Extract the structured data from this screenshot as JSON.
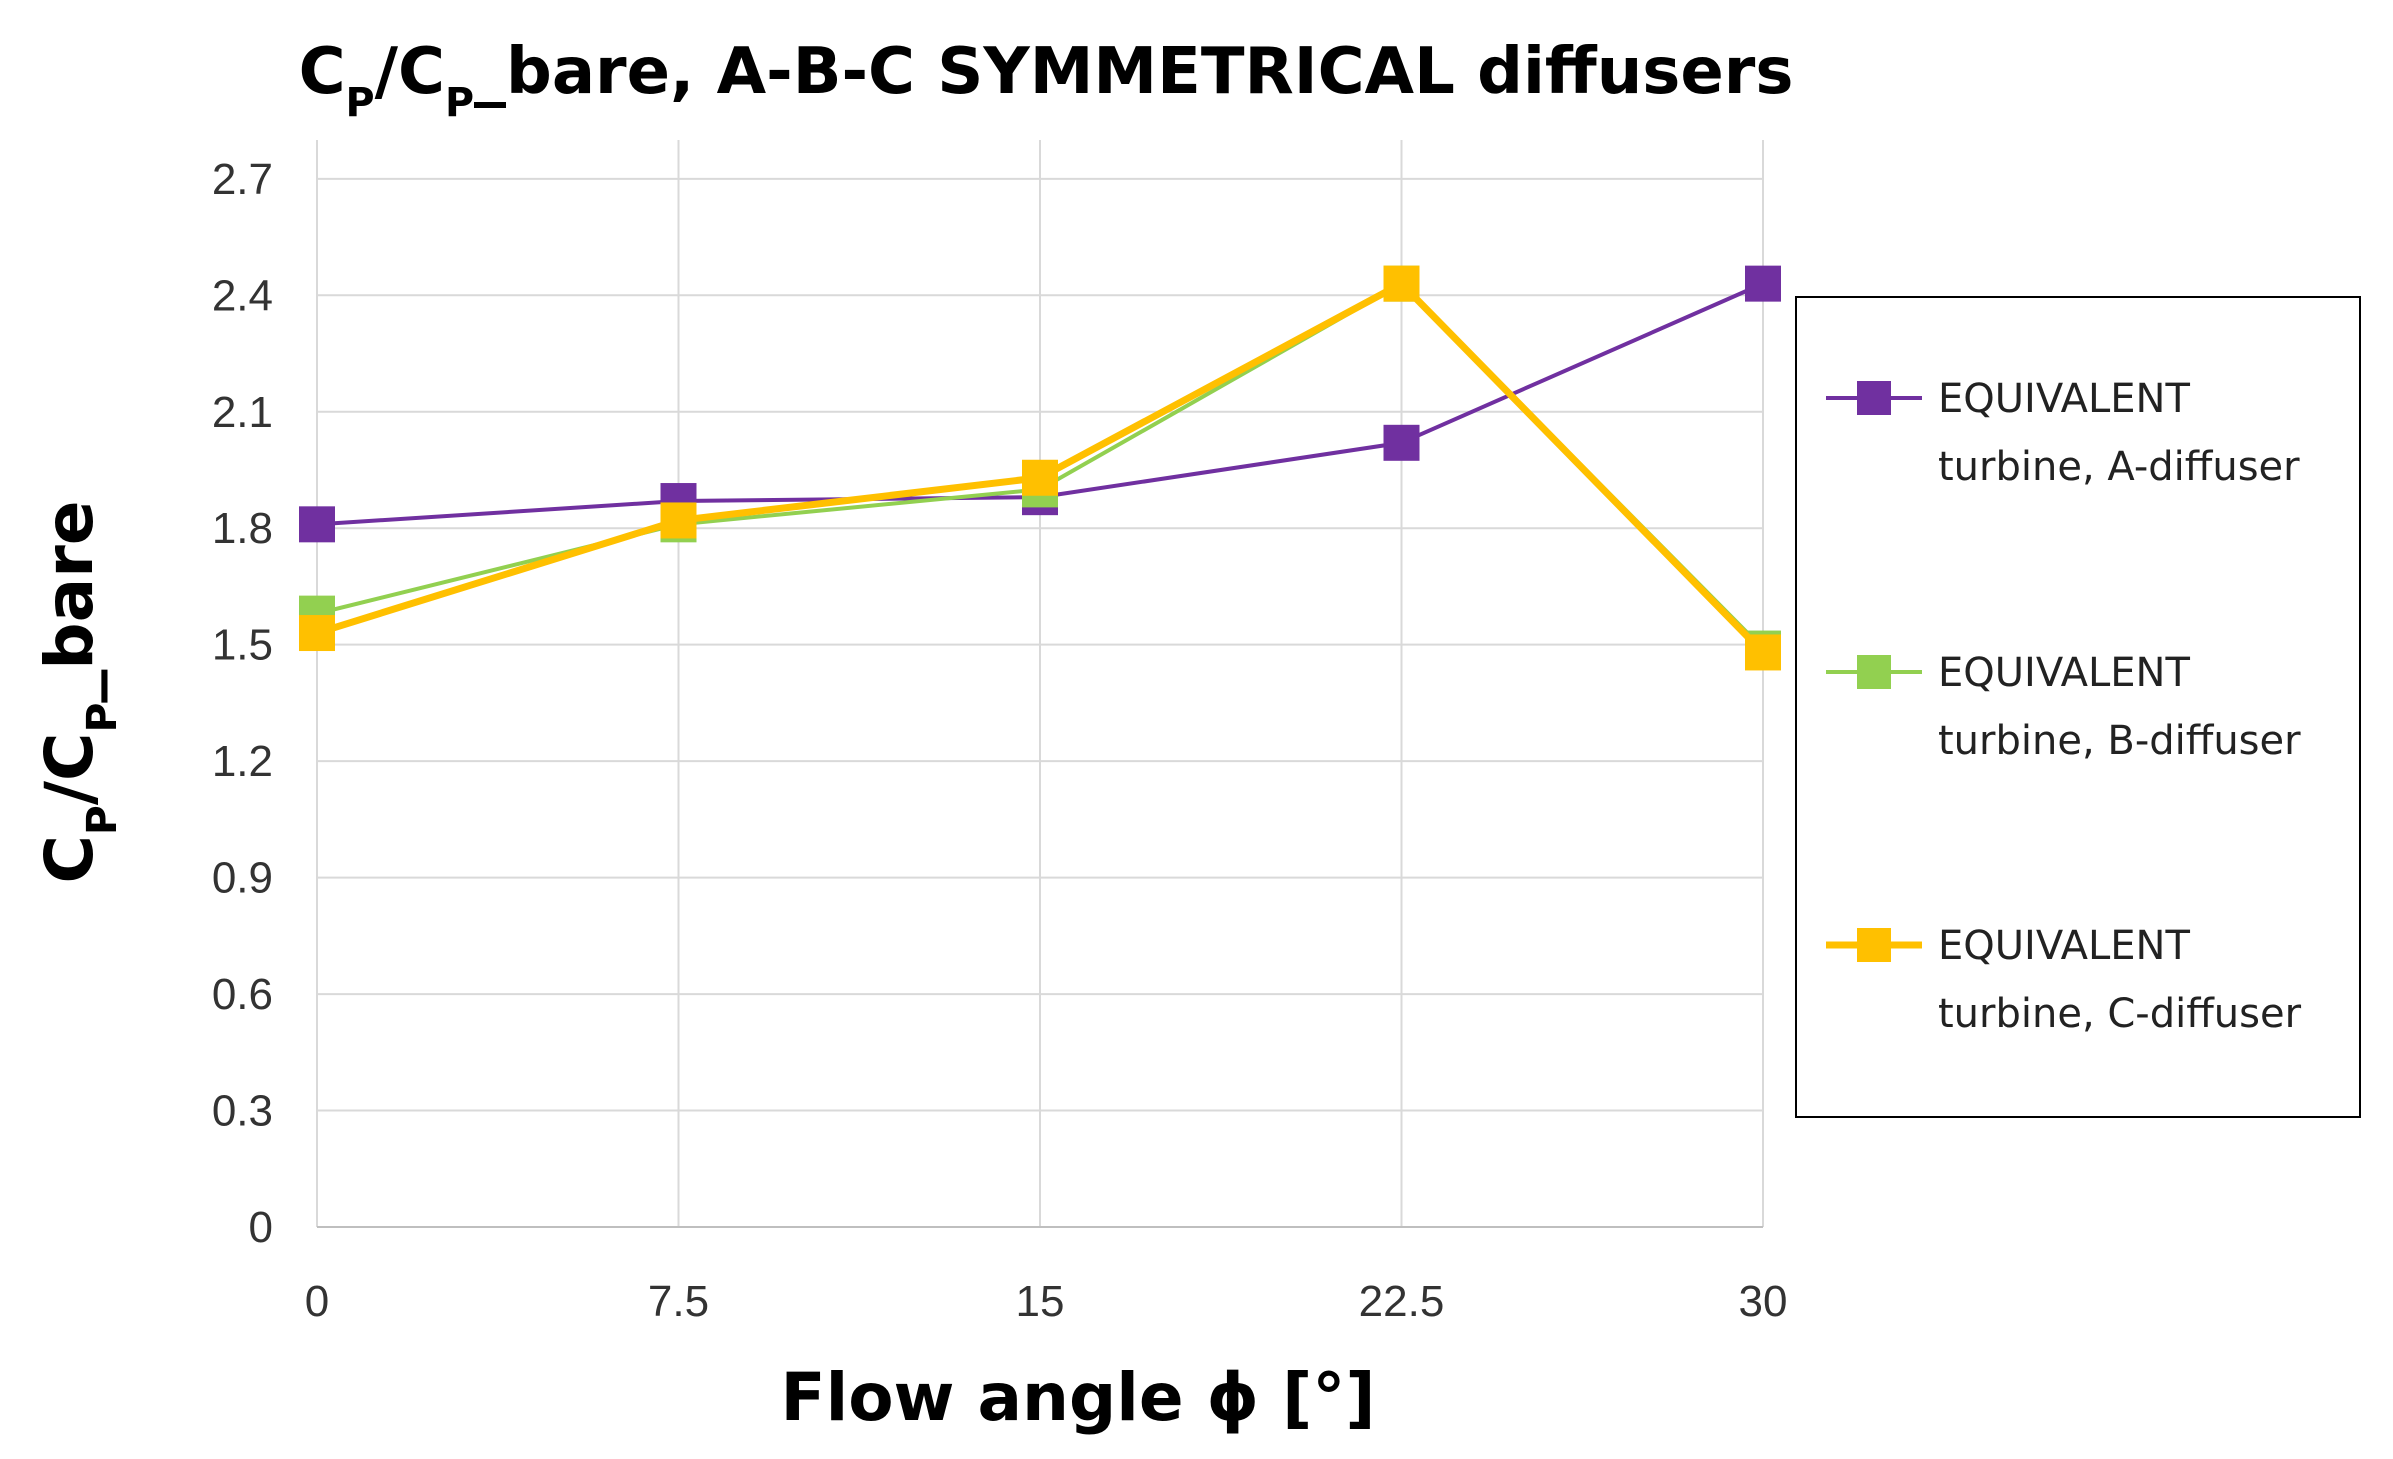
{
  "chart_data": {
    "type": "line",
    "title": {
      "parts": [
        {
          "text": "C",
          "sub": false
        },
        {
          "text": "P",
          "sub": true
        },
        {
          "text": "/C",
          "sub": false
        },
        {
          "text": "P",
          "sub": true
        },
        {
          "text": "_bare, A-B-C SYMMETRICAL diffusers",
          "sub": false
        }
      ]
    },
    "xlabel": "Flow angle ϕ [°]",
    "ylabel": {
      "parts": [
        {
          "text": "C",
          "sub": false
        },
        {
          "text": "P",
          "sub": true
        },
        {
          "text": "/C",
          "sub": false
        },
        {
          "text": "P",
          "sub": true
        },
        {
          "text": "_bare",
          "sub": false
        }
      ]
    },
    "x": [
      0,
      7.5,
      15,
      22.5,
      30
    ],
    "x_tick_labels": [
      "0",
      "7.5",
      "15",
      "22.5",
      "30"
    ],
    "ylim": [
      0,
      2.8
    ],
    "y_ticks": [
      0,
      0.3,
      0.6,
      0.9,
      1.2,
      1.5,
      1.8,
      2.1,
      2.4,
      2.7
    ],
    "y_tick_labels": [
      "0",
      "0.3",
      "0.6",
      "0.9",
      "1.2",
      "1.5",
      "1.8",
      "2.1",
      "2.4",
      "2.7"
    ],
    "grid": true,
    "legend_position": "right",
    "series": [
      {
        "name": "EQUIVALENT turbine, A-diffuser",
        "legend_lines": [
          "EQUIVALENT",
          "turbine, A-diffuser"
        ],
        "values": [
          1.81,
          1.87,
          1.88,
          2.02,
          2.43
        ],
        "color": "#7030a0",
        "marker": "square"
      },
      {
        "name": "EQUIVALENT turbine, B-diffuser",
        "legend_lines": [
          "EQUIVALENT",
          "turbine, B-diffuser"
        ],
        "values": [
          1.58,
          1.81,
          1.9,
          2.43,
          1.49
        ],
        "color": "#92d050",
        "marker": "square"
      },
      {
        "name": "EQUIVALENT turbine, C-diffuser",
        "legend_lines": [
          "EQUIVALENT",
          "turbine, C-diffuser"
        ],
        "values": [
          1.53,
          1.82,
          1.93,
          2.43,
          1.48
        ],
        "color": "#ffc000",
        "marker": "square"
      }
    ]
  }
}
